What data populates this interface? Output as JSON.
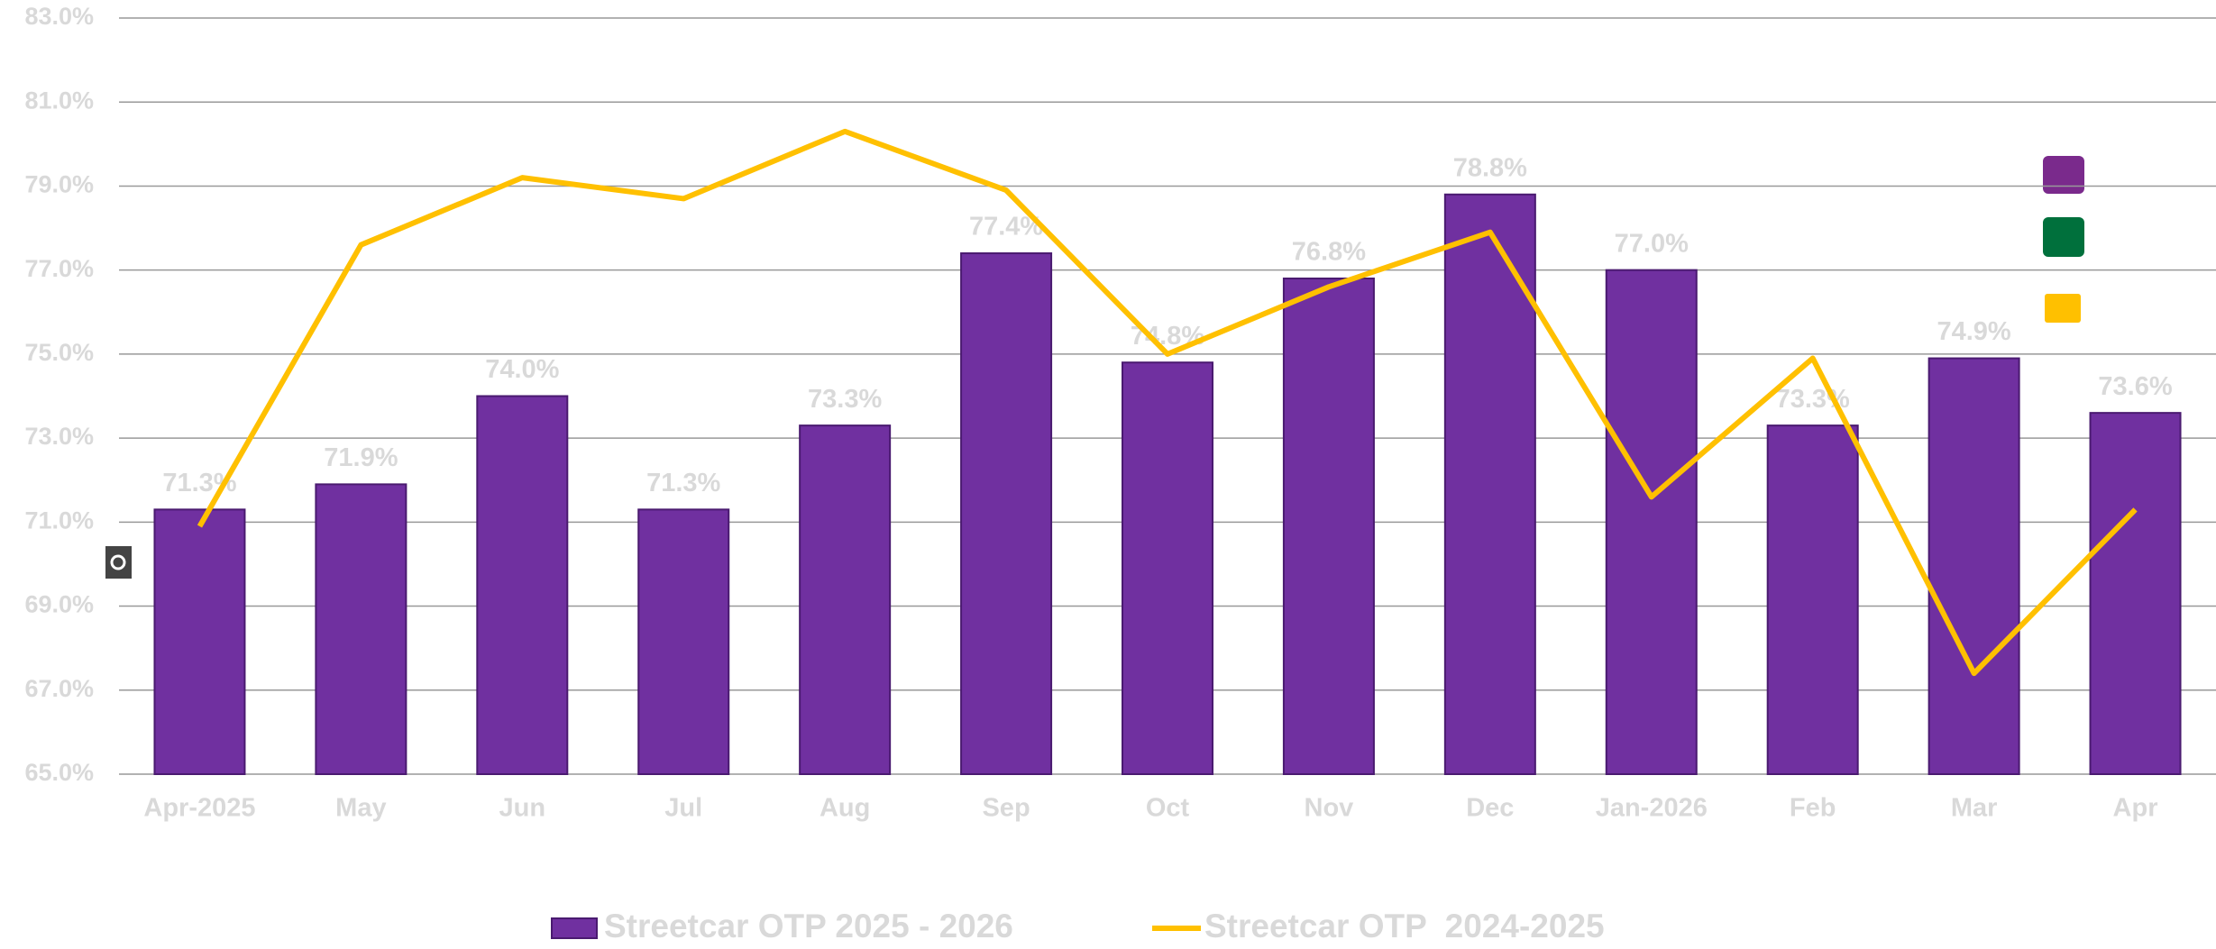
{
  "chart_data": {
    "type": "bar_line",
    "categories": [
      "Apr-2025",
      "May",
      "Jun",
      "Jul",
      "Aug",
      "Sep",
      "Oct",
      "Nov",
      "Dec",
      "Jan-2026",
      "Feb",
      "Mar",
      "Apr"
    ],
    "series": [
      {
        "name": "Streetcar OTP 2025 - 2026",
        "type": "bar",
        "color": "#7030a0",
        "values": [
          71.3,
          71.9,
          74.0,
          71.3,
          73.3,
          77.4,
          74.8,
          76.8,
          78.8,
          77.0,
          73.3,
          74.9,
          73.6
        ],
        "value_labels": [
          "71.3%",
          "71.9%",
          "74.0%",
          "71.3%",
          "73.3%",
          "77.4%",
          "74.8%",
          "76.8%",
          "78.8%",
          "77.0%",
          "73.3%",
          "74.9%",
          "73.6%"
        ]
      },
      {
        "name": "Streetcar OTP  2024-2025",
        "type": "line",
        "color": "#ffc000",
        "values": [
          70.9,
          77.6,
          79.2,
          78.7,
          80.3,
          78.9,
          75.0,
          76.6,
          77.9,
          71.6,
          74.9,
          67.4,
          71.3
        ]
      }
    ],
    "ylim": [
      65,
      83
    ],
    "yticks": [
      {
        "value": 65,
        "label": "65.0%"
      },
      {
        "value": 67,
        "label": "67.0%"
      },
      {
        "value": 69,
        "label": "69.0%"
      },
      {
        "value": 71,
        "label": "71.0%"
      },
      {
        "value": 73,
        "label": "73.0%"
      },
      {
        "value": 75,
        "label": "75.0%"
      },
      {
        "value": 77,
        "label": "77.0%"
      },
      {
        "value": 79,
        "label": "79.0%"
      },
      {
        "value": 81,
        "label": "81.0%"
      },
      {
        "value": 83,
        "label": "83.0%"
      }
    ],
    "grid": true
  }
}
